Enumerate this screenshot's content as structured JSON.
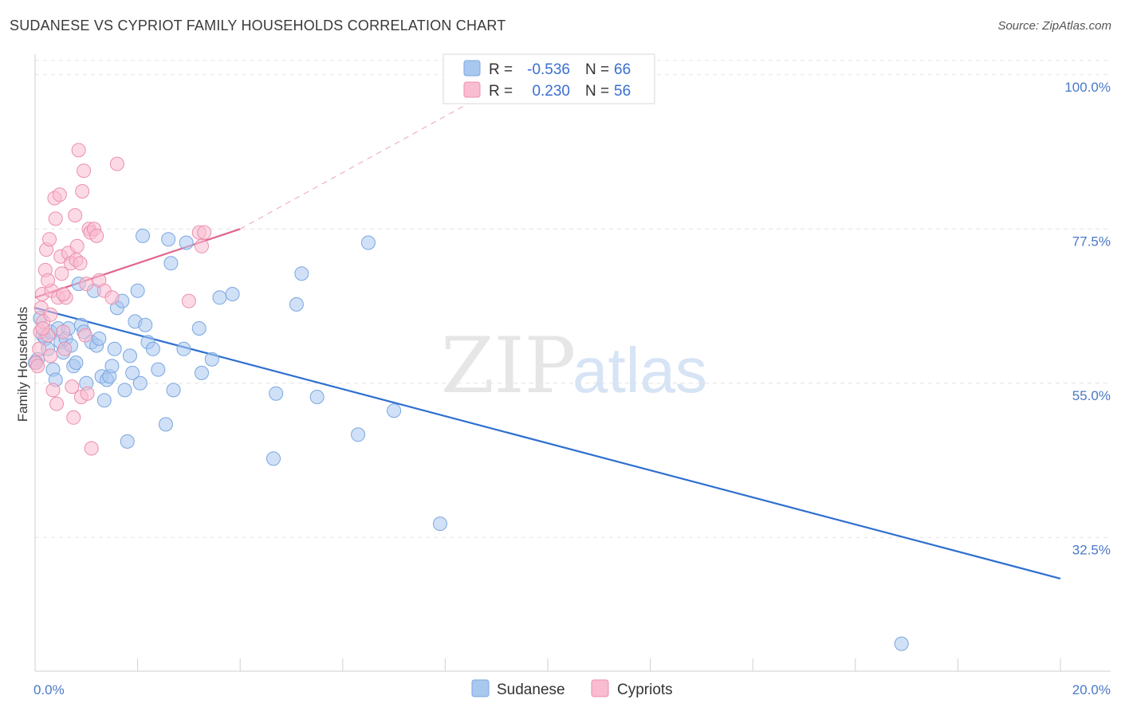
{
  "header": {
    "title": "SUDANESE VS CYPRIOT FAMILY HOUSEHOLDS CORRELATION CHART",
    "source": "Source: ZipAtlas.com"
  },
  "watermark": {
    "zip": "ZIP",
    "atlas": "atlas"
  },
  "legend": {
    "r_label": "R =",
    "n_label": "N =",
    "items": [
      {
        "r": "-0.536",
        "n": "66",
        "color": "#a9c8f0",
        "stroke": "#7aa6e0"
      },
      {
        "r": "0.230",
        "n": "56",
        "color": "#f9bcd0",
        "stroke": "#eb8fae"
      }
    ]
  },
  "chart_data": {
    "type": "scatter",
    "title": "SUDANESE VS CYPRIOT FAMILY HOUSEHOLDS CORRELATION CHART",
    "xlabel": "",
    "ylabel": "Family Households",
    "xlim": [
      0,
      20
    ],
    "ylim": [
      13,
      103
    ],
    "x_ticks": [
      0,
      20
    ],
    "x_tick_labels": [
      "0.0%",
      "20.0%"
    ],
    "y_ticks": [
      32.5,
      55.0,
      77.5,
      100.0
    ],
    "y_tick_labels": [
      "32.5%",
      "55.0%",
      "77.5%",
      "100.0%"
    ],
    "grid": true,
    "legend_position": "top-center",
    "series": [
      {
        "name": "Sudanese",
        "color": "#a9c8f0",
        "stroke": "#7aa6e0",
        "trend": {
          "x0": 0.0,
          "y0": 66.0,
          "x1": 20.0,
          "y1": 26.5,
          "color": "#2e6fcf"
        },
        "points": [
          [
            0.05,
            58.5
          ],
          [
            0.1,
            64.5
          ],
          [
            0.15,
            62.0
          ],
          [
            0.2,
            61.5
          ],
          [
            0.25,
            60.0
          ],
          [
            0.3,
            62.5
          ],
          [
            0.35,
            57.0
          ],
          [
            0.4,
            55.5
          ],
          [
            0.45,
            63.0
          ],
          [
            0.5,
            61.0
          ],
          [
            0.55,
            59.5
          ],
          [
            0.6,
            61.5
          ],
          [
            0.65,
            63.0
          ],
          [
            0.7,
            60.5
          ],
          [
            0.75,
            57.5
          ],
          [
            0.8,
            58.0
          ],
          [
            0.85,
            69.5
          ],
          [
            0.9,
            63.5
          ],
          [
            0.95,
            62.5
          ],
          [
            1.0,
            55.0
          ],
          [
            1.1,
            61.0
          ],
          [
            1.15,
            68.5
          ],
          [
            1.2,
            60.5
          ],
          [
            1.25,
            61.5
          ],
          [
            1.3,
            56.0
          ],
          [
            1.35,
            52.5
          ],
          [
            1.4,
            55.5
          ],
          [
            1.45,
            56.0
          ],
          [
            1.5,
            57.5
          ],
          [
            1.55,
            60.0
          ],
          [
            1.6,
            66.0
          ],
          [
            1.7,
            67.0
          ],
          [
            1.75,
            54.0
          ],
          [
            1.8,
            46.5
          ],
          [
            1.85,
            59.0
          ],
          [
            1.9,
            56.5
          ],
          [
            1.95,
            64.0
          ],
          [
            2.0,
            68.5
          ],
          [
            2.05,
            55.0
          ],
          [
            2.1,
            76.5
          ],
          [
            2.15,
            63.5
          ],
          [
            2.2,
            61.0
          ],
          [
            2.3,
            60.0
          ],
          [
            2.4,
            57.0
          ],
          [
            2.55,
            49.0
          ],
          [
            2.6,
            76.0
          ],
          [
            2.65,
            72.5
          ],
          [
            2.7,
            54.0
          ],
          [
            2.9,
            60.0
          ],
          [
            2.95,
            75.5
          ],
          [
            3.2,
            63.0
          ],
          [
            3.25,
            56.5
          ],
          [
            3.45,
            58.5
          ],
          [
            3.6,
            67.5
          ],
          [
            3.85,
            68.0
          ],
          [
            4.65,
            44.0
          ],
          [
            4.7,
            53.5
          ],
          [
            5.1,
            66.5
          ],
          [
            5.2,
            71.0
          ],
          [
            5.5,
            53.0
          ],
          [
            6.3,
            47.5
          ],
          [
            6.5,
            75.5
          ],
          [
            7.0,
            51.0
          ],
          [
            7.9,
            34.5
          ],
          [
            16.9,
            17.0
          ],
          [
            0.0,
            58.0
          ]
        ]
      },
      {
        "name": "Cypriots",
        "color": "#f9bcd0",
        "stroke": "#eb8fae",
        "trend": {
          "x0": 0.0,
          "y0": 67.5,
          "x1": 4.0,
          "y1": 77.5,
          "color": "#e0658f",
          "dash_to_x": 10.2,
          "dash_to_y": 103.0
        },
        "points": [
          [
            0.02,
            58.0
          ],
          [
            0.05,
            57.5
          ],
          [
            0.08,
            60.0
          ],
          [
            0.1,
            62.5
          ],
          [
            0.12,
            66.0
          ],
          [
            0.14,
            68.0
          ],
          [
            0.16,
            64.0
          ],
          [
            0.2,
            71.5
          ],
          [
            0.22,
            74.5
          ],
          [
            0.25,
            62.0
          ],
          [
            0.28,
            76.0
          ],
          [
            0.3,
            59.0
          ],
          [
            0.32,
            68.5
          ],
          [
            0.35,
            54.0
          ],
          [
            0.38,
            82.0
          ],
          [
            0.4,
            79.0
          ],
          [
            0.42,
            52.0
          ],
          [
            0.45,
            67.5
          ],
          [
            0.48,
            82.5
          ],
          [
            0.5,
            73.5
          ],
          [
            0.52,
            71.0
          ],
          [
            0.55,
            62.5
          ],
          [
            0.58,
            60.0
          ],
          [
            0.6,
            67.5
          ],
          [
            0.65,
            74.0
          ],
          [
            0.7,
            72.5
          ],
          [
            0.72,
            54.5
          ],
          [
            0.75,
            50.0
          ],
          [
            0.78,
            79.5
          ],
          [
            0.8,
            73.0
          ],
          [
            0.82,
            75.0
          ],
          [
            0.85,
            89.0
          ],
          [
            0.88,
            72.5
          ],
          [
            0.9,
            53.0
          ],
          [
            0.92,
            83.0
          ],
          [
            0.95,
            86.0
          ],
          [
            0.98,
            62.0
          ],
          [
            1.0,
            69.5
          ],
          [
            1.02,
            53.5
          ],
          [
            1.05,
            77.5
          ],
          [
            1.08,
            77.0
          ],
          [
            1.1,
            45.5
          ],
          [
            1.15,
            77.5
          ],
          [
            1.2,
            76.5
          ],
          [
            1.25,
            70.0
          ],
          [
            1.35,
            68.5
          ],
          [
            1.5,
            67.5
          ],
          [
            1.6,
            87.0
          ],
          [
            3.0,
            67.0
          ],
          [
            3.2,
            77.0
          ],
          [
            3.25,
            75.0
          ],
          [
            3.3,
            77.0
          ],
          [
            0.15,
            63.0
          ],
          [
            0.3,
            65.0
          ],
          [
            0.55,
            68.0
          ],
          [
            0.25,
            70.0
          ]
        ]
      }
    ]
  },
  "bottom_legend": [
    {
      "label": "Sudanese",
      "color": "#a9c8f0",
      "stroke": "#7aa6e0"
    },
    {
      "label": "Cypriots",
      "color": "#f9bcd0",
      "stroke": "#eb8fae"
    }
  ]
}
